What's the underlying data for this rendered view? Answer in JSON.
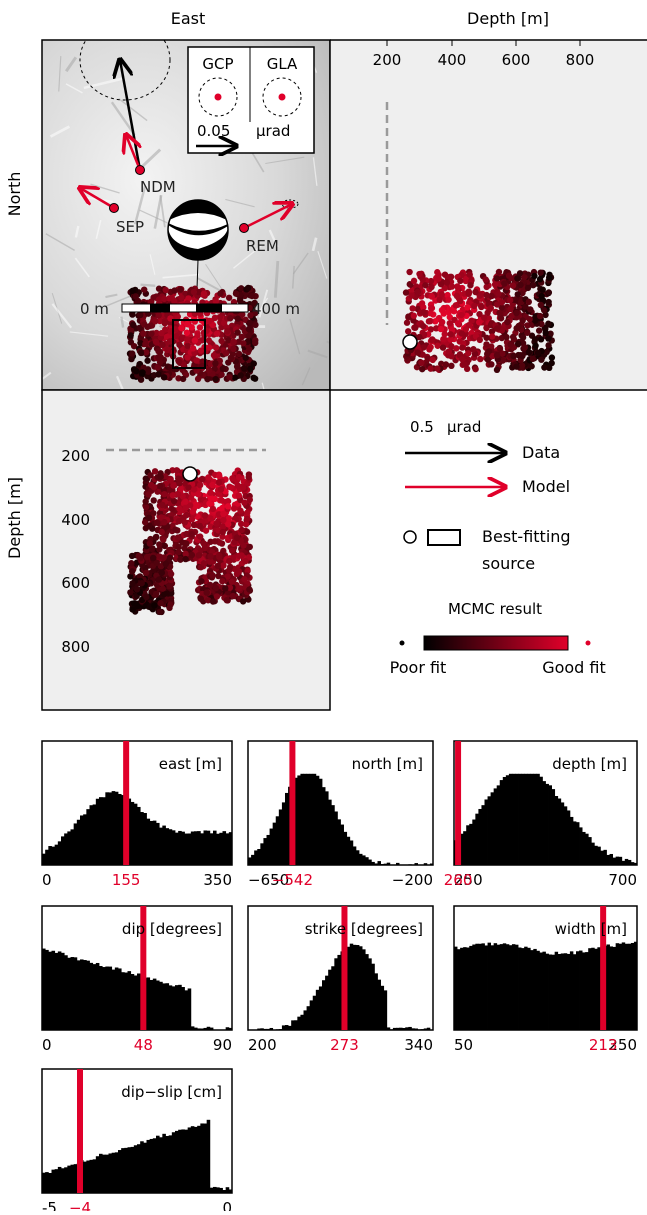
{
  "colors": {
    "data": "#000000",
    "model": "#e0002a",
    "best": "#e0002a",
    "panel_bg": "#efefef",
    "grid_dash": "#9a9a9a"
  },
  "map": {
    "col_label_east": "East",
    "col_label_depth": "Depth [m]",
    "row_label_north": "North",
    "row_label_depth": "Depth [m]",
    "depth_ticks": [
      "200",
      "400",
      "600",
      "800"
    ],
    "stations": [
      "NDM",
      "SEP",
      "REM"
    ],
    "inset_stations": [
      "GCP",
      "GLA"
    ],
    "inset_scale_value": "0.05",
    "inset_scale_unit": "µrad",
    "scalebar_left": "0 m",
    "scalebar_right": "400 m",
    "left_depth_ticks": [
      "200",
      "400",
      "600",
      "800"
    ]
  },
  "legend": {
    "scale_value": "0.5",
    "scale_unit": "µrad",
    "data_label": "Data",
    "model_label": "Model",
    "best_label_1": "Best-fitting",
    "best_label_2": "source",
    "mcmc_title": "MCMC result",
    "poor_label": "Poor fit",
    "good_label": "Good fit"
  },
  "chart_data": [
    {
      "type": "bar",
      "title": "east [m]",
      "xmin": "0",
      "xmax": "350",
      "xlim": [
        0,
        350
      ],
      "best": 155,
      "best_label": "155",
      "shape": "east"
    },
    {
      "type": "bar",
      "title": "north [m]",
      "xmin": "−650",
      "xmax": "−200",
      "xlim": [
        -650,
        -200
      ],
      "best": -542,
      "best_label": "−542",
      "shape": "north"
    },
    {
      "type": "bar",
      "title": "depth [m]",
      "xmin": "250",
      "xmax": "700",
      "xlim": [
        250,
        700
      ],
      "best": 260,
      "best_label": "260",
      "shape": "depth"
    },
    {
      "type": "bar",
      "title": "dip [degrees]",
      "xmin": "0",
      "xmax": "90",
      "xlim": [
        0,
        90
      ],
      "best": 48,
      "best_label": "48",
      "shape": "dip"
    },
    {
      "type": "bar",
      "title": "strike [degrees]",
      "xmin": "200",
      "xmax": "340",
      "xlim": [
        200,
        340
      ],
      "best": 273,
      "best_label": "273",
      "shape": "strike"
    },
    {
      "type": "bar",
      "title": "width [m]",
      "xmin": "50",
      "xmax": "250",
      "xlim": [
        50,
        250
      ],
      "best": 213,
      "best_label": "213",
      "shape": "width"
    },
    {
      "type": "bar",
      "title": "dip−slip [cm]",
      "xmin": "-5",
      "xmax": "0",
      "xlim": [
        -5,
        0
      ],
      "best": -4,
      "best_label": "−4",
      "shape": "slip"
    }
  ]
}
